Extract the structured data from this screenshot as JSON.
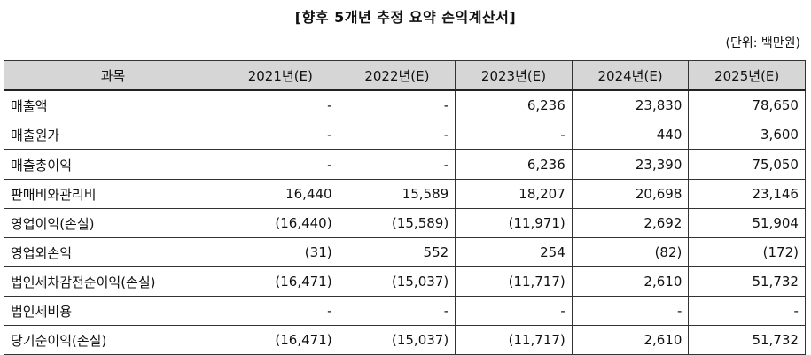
{
  "title": "[향후 5개년 추정 요약 손익계산서]",
  "unit": "(단위: 백만원)",
  "table": {
    "headers": [
      "과목",
      "2021년(E)",
      "2022년(E)",
      "2023년(E)",
      "2024년(E)",
      "2025년(E)"
    ],
    "rows": [
      {
        "label": "매출액",
        "values": [
          "-",
          "-",
          "6,236",
          "23,830",
          "78,650"
        ]
      },
      {
        "label": "매출원가",
        "values": [
          "-",
          "-",
          "-",
          "440",
          "3,600"
        ]
      },
      {
        "label": "매출총이익",
        "values": [
          "-",
          "-",
          "6,236",
          "23,390",
          "75,050"
        ]
      },
      {
        "label": "판매비와관리비",
        "values": [
          "16,440",
          "15,589",
          "18,207",
          "20,698",
          "23,146"
        ]
      },
      {
        "label": "영업이익(손실)",
        "values": [
          "(16,440)",
          "(15,589)",
          "(11,971)",
          "2,692",
          "51,904"
        ]
      },
      {
        "label": "영업외손익",
        "values": [
          "(31)",
          "552",
          "254",
          "(82)",
          "(172)"
        ]
      },
      {
        "label": "법인세차감전순이익(손실)",
        "values": [
          "(16,471)",
          "(15,037)",
          "(11,717)",
          "2,610",
          "51,732"
        ]
      },
      {
        "label": "법인세비용",
        "values": [
          "-",
          "-",
          "-",
          "-",
          "-"
        ]
      },
      {
        "label": "당기순이익(손실)",
        "values": [
          "(16,471)",
          "(15,037)",
          "(11,717)",
          "2,610",
          "51,732"
        ]
      }
    ]
  }
}
